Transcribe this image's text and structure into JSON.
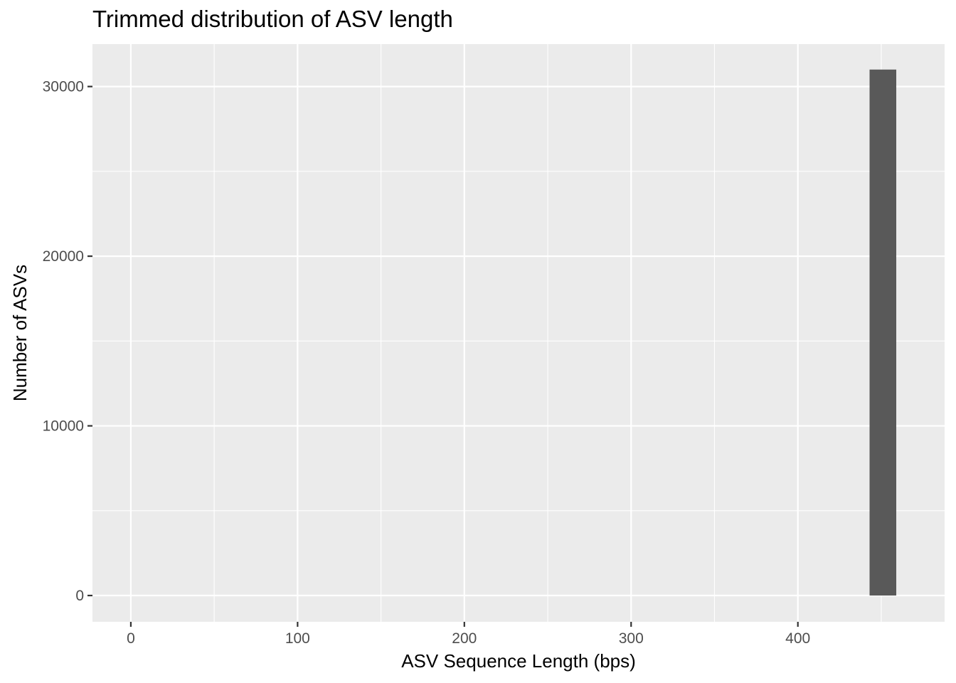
{
  "chart_data": {
    "type": "bar",
    "title": "Trimmed distribution of ASV length",
    "xlabel": "ASV Sequence Length (bps)",
    "ylabel": "Number of ASVs",
    "xlim": [
      -23,
      488
    ],
    "ylim": [
      -1550,
      32500
    ],
    "x_ticks": [
      0,
      100,
      200,
      300,
      400
    ],
    "y_ticks": [
      0,
      10000,
      20000,
      30000
    ],
    "bins": [
      {
        "x_start": 443,
        "x_end": 459,
        "count": 31000
      }
    ],
    "bar_color": "#595959",
    "panel_background": "#ebebeb",
    "grid": true
  }
}
